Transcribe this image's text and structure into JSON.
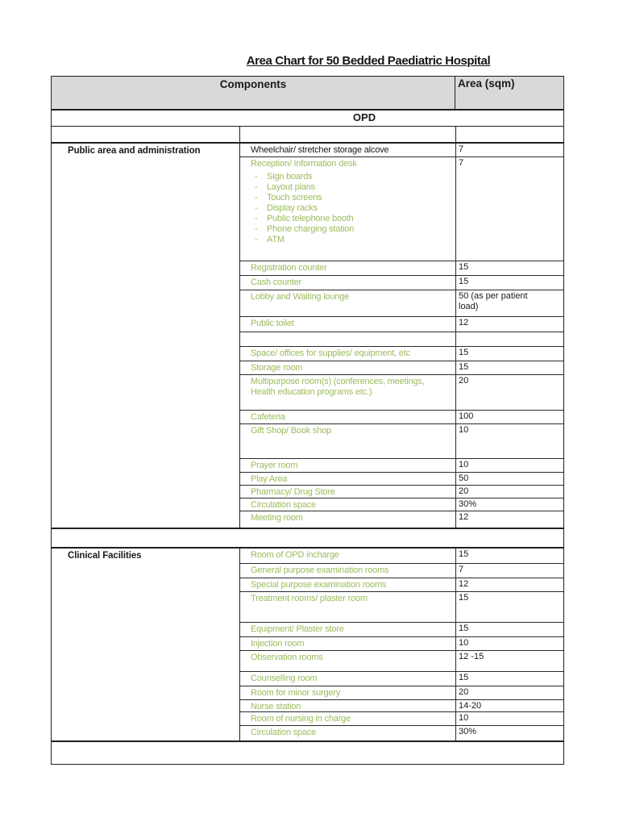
{
  "title": "Area Chart for 50 Bedded Paediatric Hospital",
  "table": {
    "header": {
      "components": "Components",
      "area": "Area (sqm)"
    },
    "section_band": "OPD",
    "sections": [
      {
        "name": "Public area and administration",
        "rows": [
          {
            "label": "Wheelchair/ stretcher storage alcove",
            "area": "7",
            "color": "black"
          },
          {
            "label": "Reception/ Information desk",
            "area": "7",
            "bullets": [
              "Sign boards",
              "Layout plans",
              "Touch screens",
              "Display racks",
              "Public telephone booth",
              "Phone charging station",
              "ATM"
            ]
          },
          {
            "label": "Registration counter",
            "area": "15"
          },
          {
            "label": "Cash counter",
            "area": "15"
          },
          {
            "label": "Lobby and Waiting lounge",
            "area": "50 (as per patient load)"
          },
          {
            "label": "Public toilet",
            "area": "12"
          },
          {
            "label": "",
            "area": ""
          },
          {
            "label": "Space/ offices for supplies/ equipment, etc",
            "area": "15"
          },
          {
            "label": "Storage room",
            "area": "15"
          },
          {
            "label": "Multipurpose room(s) (conferences, meetings, Health education programs etc.)",
            "area": "20"
          },
          {
            "label": "Cafeteria",
            "area": "100"
          },
          {
            "label": "Gift Shop/ Book shop",
            "area": "10"
          },
          {
            "label": "Prayer room",
            "area": "10"
          },
          {
            "label": "Play Area",
            "area": "50"
          },
          {
            "label": "Pharmacy/ Drug Store",
            "area": "20"
          },
          {
            "label": "Circulation space",
            "area": "30%"
          },
          {
            "label": "Meeting room",
            "area": "12"
          }
        ]
      },
      {
        "name": "Clinical Facilities",
        "rows": [
          {
            "label": "Room of OPD incharge",
            "area": "15"
          },
          {
            "label": "General purpose examination rooms",
            "area": "7"
          },
          {
            "label": "Special purpose examination rooms",
            "area": "12"
          },
          {
            "label": "Treatment rooms/ plaster room",
            "area": "15"
          },
          {
            "label": "Equipment/ Plaster store",
            "area": "15"
          },
          {
            "label": "Injection room",
            "area": "10"
          },
          {
            "label": "Observation rooms",
            "area": "12 -15"
          },
          {
            "label": "Counselling room",
            "area": "15"
          },
          {
            "label": "Room for minor surgery",
            "area": "20"
          },
          {
            "label": "Nurse station",
            "area": "14-20"
          },
          {
            "label": "Room of nursing in charge",
            "area": "10"
          },
          {
            "label": "Circulation space",
            "area": "30%"
          }
        ]
      }
    ]
  },
  "colors": {
    "accent_green": "#9cbb5c",
    "header_bg": "#d9d9d9",
    "border": "#1f1f1f"
  }
}
